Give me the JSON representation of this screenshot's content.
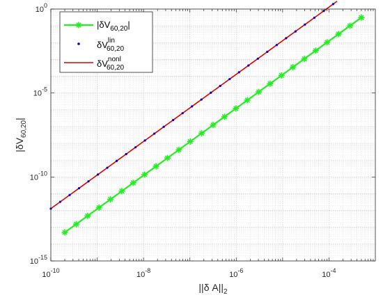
{
  "chart_data": {
    "type": "line",
    "xscale": "log",
    "yscale": "log",
    "xlim": [
      1e-10,
      0.001
    ],
    "ylim": [
      1e-15,
      1
    ],
    "grid": true,
    "legend_position": "top-left",
    "x_ticks": [
      {
        "value": 1e-10,
        "base": "10",
        "exp": "-10"
      },
      {
        "value": 1e-08,
        "base": "10",
        "exp": "-8"
      },
      {
        "value": 1e-06,
        "base": "10",
        "exp": "-6"
      },
      {
        "value": 0.0001,
        "base": "10",
        "exp": "-4"
      }
    ],
    "y_ticks": [
      {
        "value": 1e-15,
        "base": "10",
        "exp": "-15"
      },
      {
        "value": 1e-10,
        "base": "10",
        "exp": "-10"
      },
      {
        "value": 1e-05,
        "base": "10",
        "exp": "-5"
      },
      {
        "value": 1,
        "base": "10",
        "exp": "0"
      }
    ],
    "xlabel": {
      "main": "||δ A||",
      "sub": "2"
    },
    "ylabel": {
      "main": "|δV",
      "sub": "60,20",
      "tail": "|"
    },
    "series": [
      {
        "id": "abs",
        "legend": {
          "main": "|δV",
          "sub": "60,20",
          "tail": "|"
        },
        "color": "#22ee22",
        "style": "line-asterisk",
        "x_range": [
          2e-10,
          0.0005
        ],
        "points": 27,
        "y_at_x_start": 5e-14,
        "slope": 2
      },
      {
        "id": "lin",
        "legend": {
          "main": "δV",
          "sup": "lin",
          "sub": "60,20"
        },
        "color": "#0000cc",
        "style": "dots",
        "x_range": [
          1e-10,
          0.0005
        ],
        "points": 34,
        "y_at_x_start": 1.3e-12,
        "slope": 2
      },
      {
        "id": "nonl",
        "legend": {
          "main": "δV",
          "sup": "nonl",
          "sub": "60,20"
        },
        "color": "#dd0000",
        "style": "line",
        "x_range": [
          1e-10,
          0.00015
        ],
        "points": 31,
        "y_at_x_start": 1.3e-12,
        "slope": 2
      }
    ]
  }
}
